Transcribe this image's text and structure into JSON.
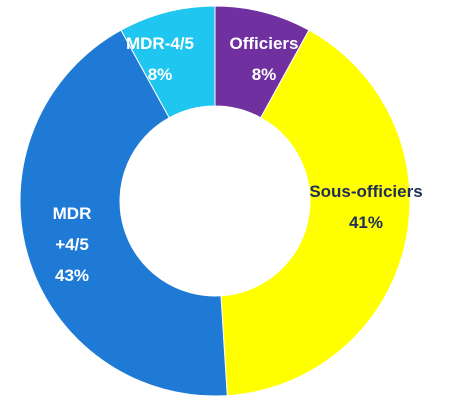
{
  "chart_data": {
    "type": "donut",
    "categories": [
      "Officiers",
      "Sous-officiers",
      "MDR +4/5",
      "MDR-4/5"
    ],
    "values": [
      8,
      41,
      43,
      8
    ],
    "value_labels": [
      "8%",
      "41%",
      "43%",
      "8%"
    ],
    "colors": [
      "#7030a0",
      "#ffff00",
      "#1f7ad6",
      "#1ec6f0"
    ]
  }
}
